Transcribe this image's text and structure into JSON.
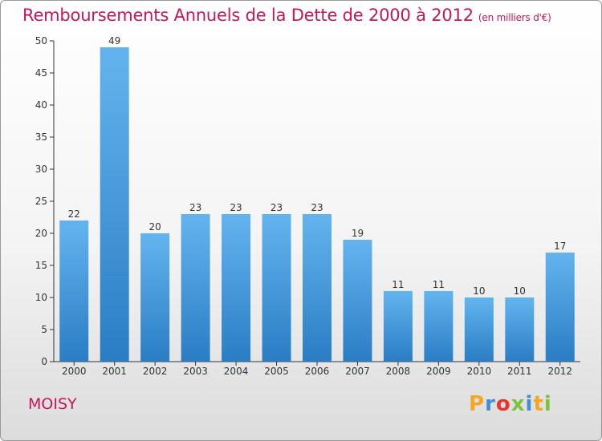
{
  "chart_data": {
    "type": "bar",
    "title": "Remboursements Annuels de la Dette de 2000 à 2012",
    "unit_label": "(en milliers d'€)",
    "categories": [
      "2000",
      "2001",
      "2002",
      "2003",
      "2004",
      "2005",
      "2006",
      "2007",
      "2008",
      "2009",
      "2010",
      "2011",
      "2012"
    ],
    "values": [
      22,
      49,
      20,
      23,
      23,
      23,
      23,
      19,
      11,
      11,
      10,
      10,
      17
    ],
    "ylim": [
      0,
      50
    ],
    "yticks": [
      0,
      5,
      10,
      15,
      20,
      25,
      30,
      35,
      40,
      45,
      50
    ],
    "grid": false,
    "legend": "none",
    "colors": {
      "bar_light": "#63b4ee",
      "bar_dark": "#2a7dc4",
      "title": "#c2185b",
      "axis": "#333333"
    }
  },
  "place_name": "MOISY",
  "brand": {
    "letters": [
      "P",
      "r",
      "o",
      "x",
      "i",
      "t",
      "i"
    ],
    "colors": [
      "#f5a623",
      "#3f8fd8",
      "#e8342f",
      "#7cc242",
      "#3f8fd8",
      "#f5a623",
      "#7cc242"
    ]
  }
}
